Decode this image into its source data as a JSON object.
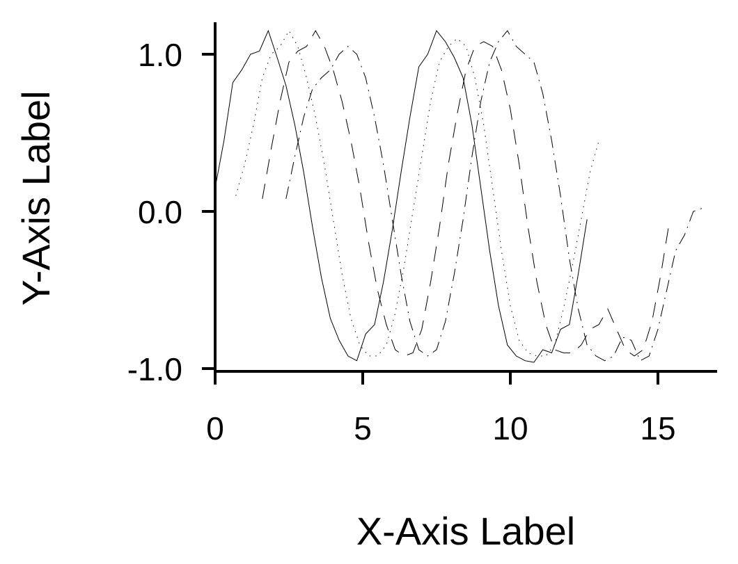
{
  "chart_data": {
    "type": "line",
    "title": "",
    "xlabel": "X-Axis Label",
    "ylabel": "Y-Axis Label",
    "xlim": [
      0,
      17
    ],
    "ylim": [
      -1.0,
      1.0
    ],
    "xticks": [
      0,
      5,
      10,
      15
    ],
    "xtick_labels": [
      "0",
      "5",
      "10",
      "15"
    ],
    "yticks": [
      -1.0,
      0.0,
      1.0
    ],
    "ytick_labels": [
      "-1.0",
      "0.0",
      "1.0"
    ],
    "grid": false,
    "legend": "none",
    "line_color": "#000000",
    "series": [
      {
        "style": "solid",
        "x": [
          0.0,
          0.3,
          0.6,
          0.9,
          1.2,
          1.5,
          1.8,
          2.1,
          2.4,
          2.7,
          3.0,
          3.3,
          3.6,
          3.9,
          4.2,
          4.5,
          4.8,
          5.1,
          5.4,
          5.7,
          6.0,
          6.3,
          6.6,
          6.9,
          7.2,
          7.5,
          7.8,
          8.1,
          8.4,
          8.7,
          9.0,
          9.3,
          9.6,
          9.9,
          10.2,
          10.5,
          10.8,
          11.1,
          11.4,
          11.7,
          12.0,
          12.3,
          12.6
        ],
        "y": [
          0.15,
          0.45,
          0.82,
          0.9,
          1.0,
          1.02,
          1.15,
          0.98,
          0.8,
          0.55,
          0.25,
          -0.1,
          -0.42,
          -0.68,
          -0.82,
          -0.92,
          -0.95,
          -0.78,
          -0.72,
          -0.45,
          -0.12,
          0.25,
          0.6,
          0.92,
          1.0,
          1.15,
          1.08,
          0.98,
          0.85,
          0.55,
          0.15,
          -0.25,
          -0.6,
          -0.85,
          -0.92,
          -0.95,
          -0.96,
          -0.88,
          -0.9,
          -0.75,
          -0.72,
          -0.4,
          -0.05
        ]
      },
      {
        "style": "dotted",
        "x": [
          0.7,
          1.0,
          1.3,
          1.6,
          1.9,
          2.2,
          2.5,
          2.8,
          3.1,
          3.4,
          3.7,
          4.0,
          4.3,
          4.6,
          4.9,
          5.2,
          5.5,
          5.8,
          6.1,
          6.4,
          6.7,
          7.0,
          7.3,
          7.6,
          7.9,
          8.2,
          8.5,
          8.8,
          9.1,
          9.4,
          9.7,
          10.0,
          10.3,
          10.6,
          10.9,
          11.2,
          11.5,
          11.8,
          12.1,
          12.4,
          12.7,
          13.0
        ],
        "y": [
          0.1,
          0.3,
          0.55,
          0.85,
          1.0,
          1.05,
          1.15,
          1.05,
          0.85,
          0.6,
          0.3,
          -0.05,
          -0.4,
          -0.68,
          -0.85,
          -0.92,
          -0.92,
          -0.85,
          -0.65,
          -0.35,
          0.0,
          0.35,
          0.7,
          0.95,
          1.05,
          1.1,
          1.05,
          0.85,
          0.55,
          0.15,
          -0.25,
          -0.6,
          -0.82,
          -0.9,
          -0.92,
          -0.92,
          -0.85,
          -0.62,
          -0.35,
          -0.05,
          0.25,
          0.45
        ]
      },
      {
        "style": "dashed",
        "x": [
          1.6,
          1.9,
          2.2,
          2.5,
          2.8,
          3.1,
          3.4,
          3.7,
          4.0,
          4.3,
          4.6,
          4.9,
          5.2,
          5.5,
          5.8,
          6.1,
          6.4,
          6.7,
          7.0,
          7.3,
          7.6,
          7.9,
          8.2,
          8.5,
          8.8,
          9.1,
          9.4,
          9.7,
          10.0,
          10.3,
          10.6,
          10.9,
          11.2,
          11.5,
          11.8,
          12.1,
          12.4,
          12.7,
          13.0,
          13.3,
          13.6,
          13.9,
          14.2,
          14.5,
          14.8,
          15.1,
          15.4
        ],
        "y": [
          0.08,
          0.4,
          0.7,
          0.95,
          1.02,
          1.05,
          1.15,
          1.05,
          0.9,
          0.7,
          0.45,
          0.15,
          -0.2,
          -0.5,
          -0.72,
          -0.88,
          -0.92,
          -0.9,
          -0.75,
          -0.45,
          -0.1,
          0.3,
          0.62,
          0.9,
          1.05,
          1.08,
          1.05,
          0.9,
          0.65,
          0.3,
          -0.1,
          -0.45,
          -0.72,
          -0.88,
          -0.9,
          -0.9,
          -0.85,
          -0.75,
          -0.72,
          -0.62,
          -0.75,
          -0.88,
          -0.92,
          -0.88,
          -0.7,
          -0.4,
          -0.05
        ]
      },
      {
        "style": "dashdot",
        "x": [
          2.4,
          2.7,
          3.0,
          3.3,
          3.6,
          3.9,
          4.2,
          4.5,
          4.8,
          5.1,
          5.4,
          5.7,
          6.0,
          6.3,
          6.6,
          6.9,
          7.2,
          7.5,
          7.8,
          8.1,
          8.4,
          8.7,
          9.0,
          9.3,
          9.6,
          9.9,
          10.2,
          10.5,
          10.8,
          11.1,
          11.4,
          11.7,
          12.0,
          12.3,
          12.6,
          12.9,
          13.2,
          13.5,
          13.8,
          14.1,
          14.4,
          14.7,
          15.0,
          15.3,
          15.6,
          15.9,
          16.2,
          16.5
        ],
        "y": [
          0.08,
          0.35,
          0.6,
          0.78,
          0.85,
          0.9,
          1.0,
          1.05,
          1.0,
          0.85,
          0.6,
          0.3,
          -0.05,
          -0.4,
          -0.7,
          -0.88,
          -0.92,
          -0.88,
          -0.7,
          -0.4,
          -0.05,
          0.35,
          0.7,
          0.95,
          1.08,
          1.15,
          1.05,
          1.0,
          0.95,
          0.75,
          0.45,
          0.1,
          -0.3,
          -0.62,
          -0.85,
          -0.92,
          -0.95,
          -0.92,
          -0.8,
          -0.82,
          -0.95,
          -0.92,
          -0.75,
          -0.5,
          -0.25,
          -0.15,
          0.0,
          0.02
        ]
      }
    ]
  }
}
